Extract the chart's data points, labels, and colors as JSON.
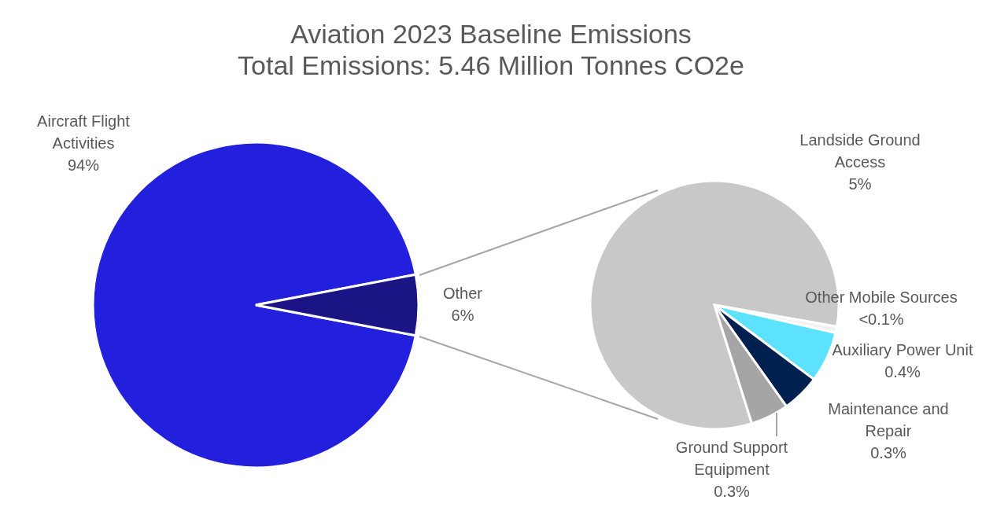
{
  "chart_data": [
    {
      "type": "pie",
      "title": "Aviation 2023 Baseline Emissions",
      "subtitle": "Total Emissions: 5.46 Million Tonnes CO2e",
      "categories": [
        "Aircraft Flight Activities",
        "Other"
      ],
      "values": [
        94,
        6
      ],
      "colors": [
        "#2320dd",
        "#1a1484"
      ],
      "value_labels": [
        "94%",
        "6%"
      ]
    },
    {
      "type": "pie",
      "categories": [
        "Landside Ground Access",
        "Other Mobile Sources",
        "Auxiliary Power Unit",
        "Maintenance and Repair",
        "Ground Support Equipment"
      ],
      "values": [
        5,
        0.05,
        0.4,
        0.3,
        0.3
      ],
      "colors": [
        "#c8c8c8",
        "#f2f2f2",
        "#5ce1ff",
        "#00204f",
        "#a5a5a5"
      ],
      "value_labels": [
        "5%",
        "<0.1%",
        "0.4%",
        "0.3%",
        "0.3%"
      ]
    }
  ]
}
